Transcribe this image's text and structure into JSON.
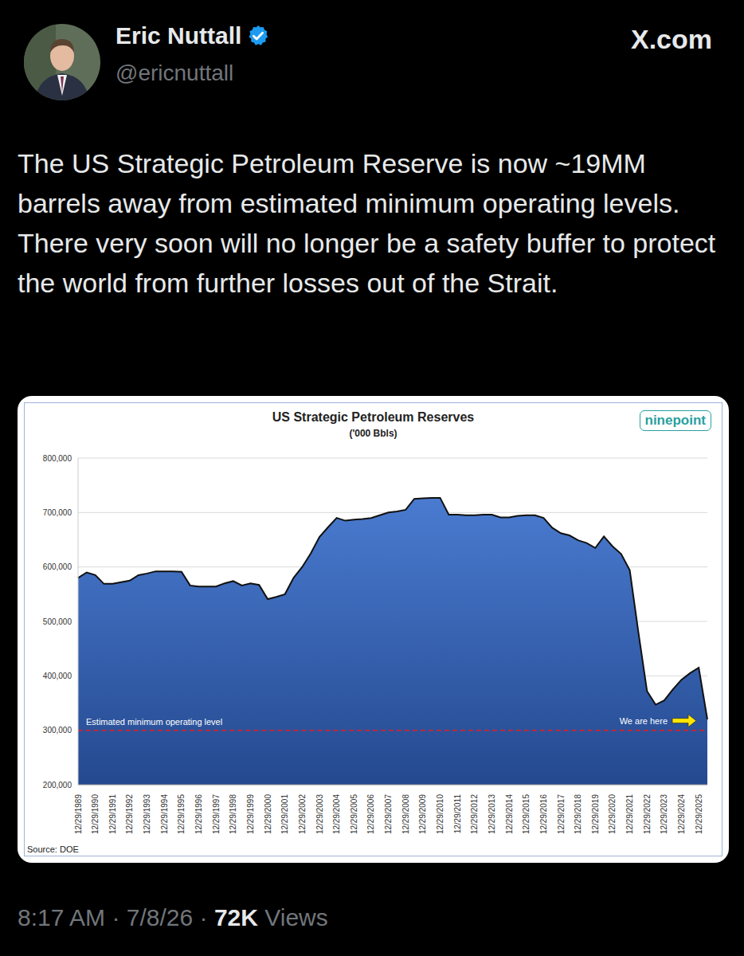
{
  "post": {
    "name": "Eric Nuttall",
    "handle": "@ericnuttall",
    "site": "X.com",
    "text": "The US Strategic Petroleum Reserve is now ~19MM barrels away from estimated minimum operating levels. There very soon will no longer be a safety buffer to protect the world from further losses out of the Strait.",
    "time": "8:17 AM",
    "separator": "·",
    "date": "7/8/26",
    "views": "72K",
    "views_label": "Views"
  },
  "chart_data": {
    "type": "area",
    "title": "US Strategic Petroleum Reserves",
    "subtitle": "('000 Bbls)",
    "logo": "ninepoint",
    "source": "Source: DOE",
    "categories": [
      "12/29/1989",
      null,
      "12/29/1990",
      null,
      "12/29/1991",
      null,
      "12/29/1992",
      null,
      "12/29/1993",
      null,
      "12/29/1994",
      null,
      "12/29/1995",
      null,
      "12/29/1996",
      null,
      "12/29/1997",
      null,
      "12/29/1998",
      null,
      "12/29/1999",
      null,
      "12/29/2000",
      null,
      "12/29/2001",
      null,
      "12/29/2002",
      null,
      "12/29/2003",
      null,
      "12/29/2004",
      null,
      "12/29/2005",
      null,
      "12/29/2006",
      null,
      "12/29/2007",
      null,
      "12/29/2008",
      null,
      "12/29/2009",
      null,
      "12/29/2010",
      null,
      "12/29/2011",
      null,
      "12/29/2012",
      null,
      "12/29/2013",
      null,
      "12/29/2014",
      null,
      "12/29/2015",
      null,
      "12/29/2016",
      null,
      "12/29/2017",
      null,
      "12/29/2018",
      null,
      "12/29/2019",
      null,
      "12/29/2020",
      null,
      "12/29/2021",
      null,
      "12/29/2022",
      null,
      "12/29/2023",
      null,
      "12/29/2024",
      null,
      "12/29/2025",
      null
    ],
    "values": [
      580000,
      590000,
      585000,
      569000,
      569000,
      572000,
      575000,
      585000,
      588000,
      592000,
      592000,
      592000,
      591000,
      566000,
      564000,
      564000,
      564000,
      570000,
      574000,
      566000,
      570000,
      567000,
      541000,
      545000,
      550000,
      580000,
      600000,
      625000,
      655000,
      673000,
      690000,
      685000,
      687000,
      688000,
      690000,
      695000,
      700000,
      702000,
      705000,
      725000,
      726000,
      727000,
      727000,
      696000,
      696000,
      695000,
      695000,
      696000,
      696000,
      691000,
      691000,
      694000,
      695000,
      695000,
      690000,
      672000,
      662000,
      658000,
      649000,
      644000,
      635000,
      656000,
      638000,
      624000,
      594000,
      480000,
      372000,
      347000,
      355000,
      375000,
      393000,
      405000,
      415000,
      320000
    ],
    "color": "#4a7bd0",
    "ylim": [
      200000,
      800000
    ],
    "yticks": [
      {
        "value": 200000,
        "label": "200,000"
      },
      {
        "value": 300000,
        "label": "300,000"
      },
      {
        "value": 400000,
        "label": "400,000"
      },
      {
        "value": 500000,
        "label": "500,000"
      },
      {
        "value": 600000,
        "label": "600,000"
      },
      {
        "value": 700000,
        "label": "700,000"
      },
      {
        "value": 800000,
        "label": "800,000"
      }
    ],
    "grid": true,
    "reference_line": {
      "value": 300000,
      "label": "Estimated minimum operating level",
      "color": "#e02020"
    },
    "annotations": [
      {
        "text": "We are here",
        "color": "#ffe600"
      }
    ]
  }
}
